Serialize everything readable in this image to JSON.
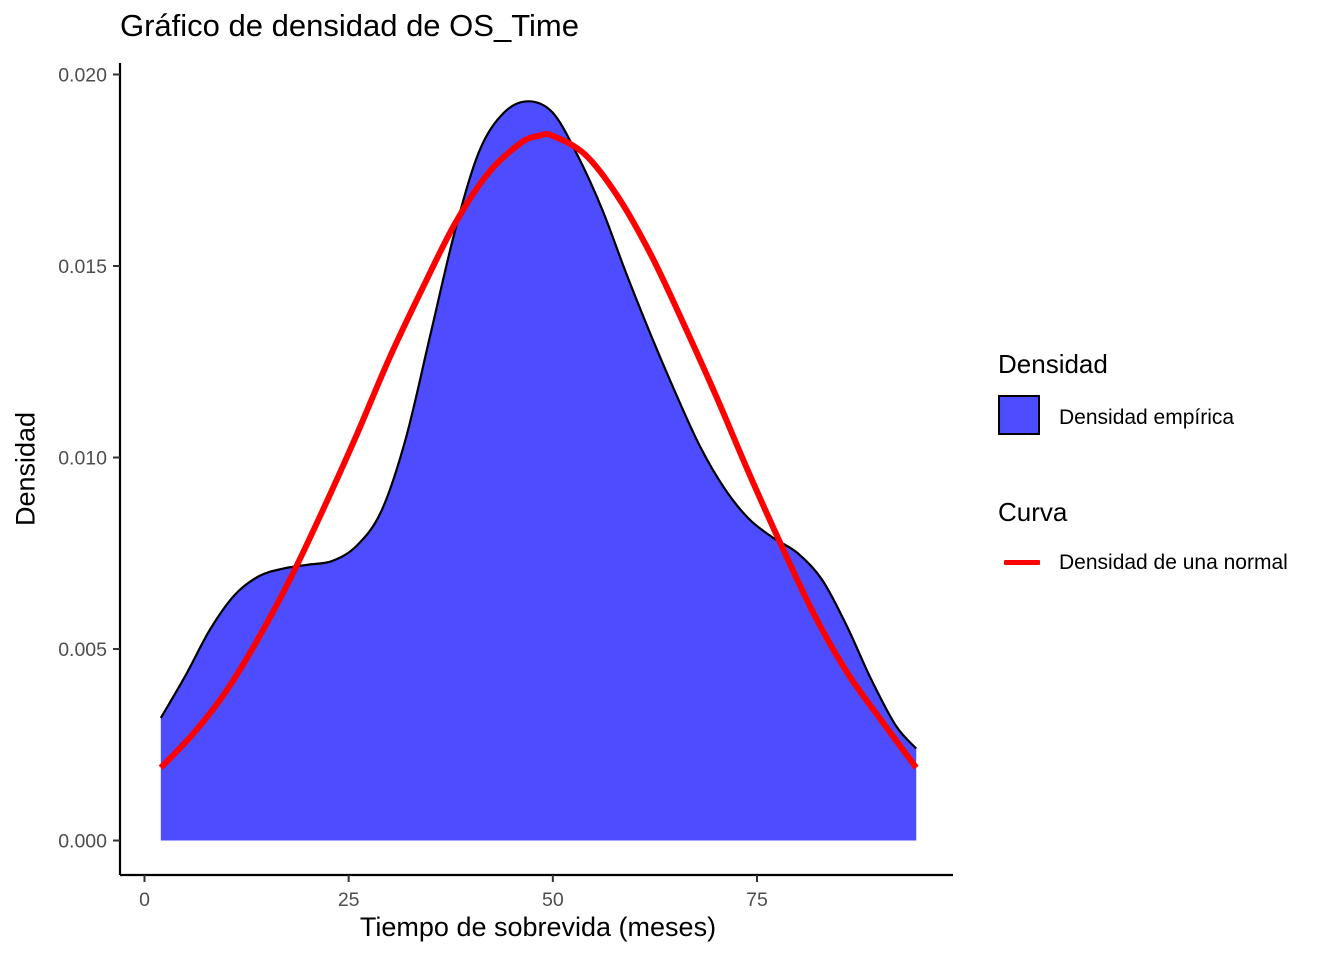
{
  "chart_data": {
    "type": "area",
    "title": "Gráfico de densidad de OS_Time",
    "xlabel": "Tiempo de sobrevida (meses)",
    "ylabel": "Densidad",
    "xlim": [
      -3,
      99
    ],
    "ylim": [
      -0.0009,
      0.0203
    ],
    "x_ticks": [
      0,
      25,
      50,
      75
    ],
    "y_ticks": [
      0.0,
      0.005,
      0.01,
      0.015,
      0.02
    ],
    "y_tick_labels": [
      "0.000",
      "0.005",
      "0.010",
      "0.015",
      "0.020"
    ],
    "grid": false,
    "legend_position": "right",
    "series": [
      {
        "name": "Densidad empírica",
        "kind": "area",
        "color": "#4D4DFF",
        "x": [
          2,
          5,
          8,
          11,
          14,
          17,
          20,
          23,
          26,
          29,
          32,
          35,
          38,
          41,
          44,
          47,
          50,
          53,
          56,
          59,
          62,
          65,
          68,
          71,
          74,
          77,
          80,
          83,
          86,
          89,
          92,
          94.5
        ],
        "y": [
          0.0032,
          0.0043,
          0.0055,
          0.0064,
          0.0069,
          0.0071,
          0.0072,
          0.0073,
          0.0077,
          0.0086,
          0.0105,
          0.0132,
          0.0159,
          0.018,
          0.019,
          0.0193,
          0.019,
          0.0179,
          0.0165,
          0.0148,
          0.0132,
          0.0117,
          0.0103,
          0.0092,
          0.0084,
          0.0079,
          0.0075,
          0.0068,
          0.0056,
          0.0042,
          0.003,
          0.0024
        ]
      },
      {
        "name": "Densidad de una normal",
        "kind": "line",
        "color": "#FF0000",
        "x": [
          2,
          6,
          10,
          14,
          18,
          22,
          26,
          30,
          34,
          38,
          42,
          46,
          48.3,
          50,
          54,
          58,
          62,
          66,
          70,
          74,
          78,
          82,
          86,
          90,
          94.5
        ],
        "y": [
          0.0019,
          0.0028,
          0.0039,
          0.0053,
          0.0069,
          0.0087,
          0.0106,
          0.0126,
          0.0144,
          0.0161,
          0.0174,
          0.0182,
          0.0184,
          0.0184,
          0.0179,
          0.0168,
          0.0153,
          0.0135,
          0.0116,
          0.0096,
          0.0077,
          0.0059,
          0.0044,
          0.0032,
          0.0019
        ]
      }
    ],
    "legend": {
      "fill_title": "Densidad",
      "fill_label": "Densidad empírica",
      "line_title": "Curva",
      "line_label": "Densidad de una normal"
    }
  }
}
